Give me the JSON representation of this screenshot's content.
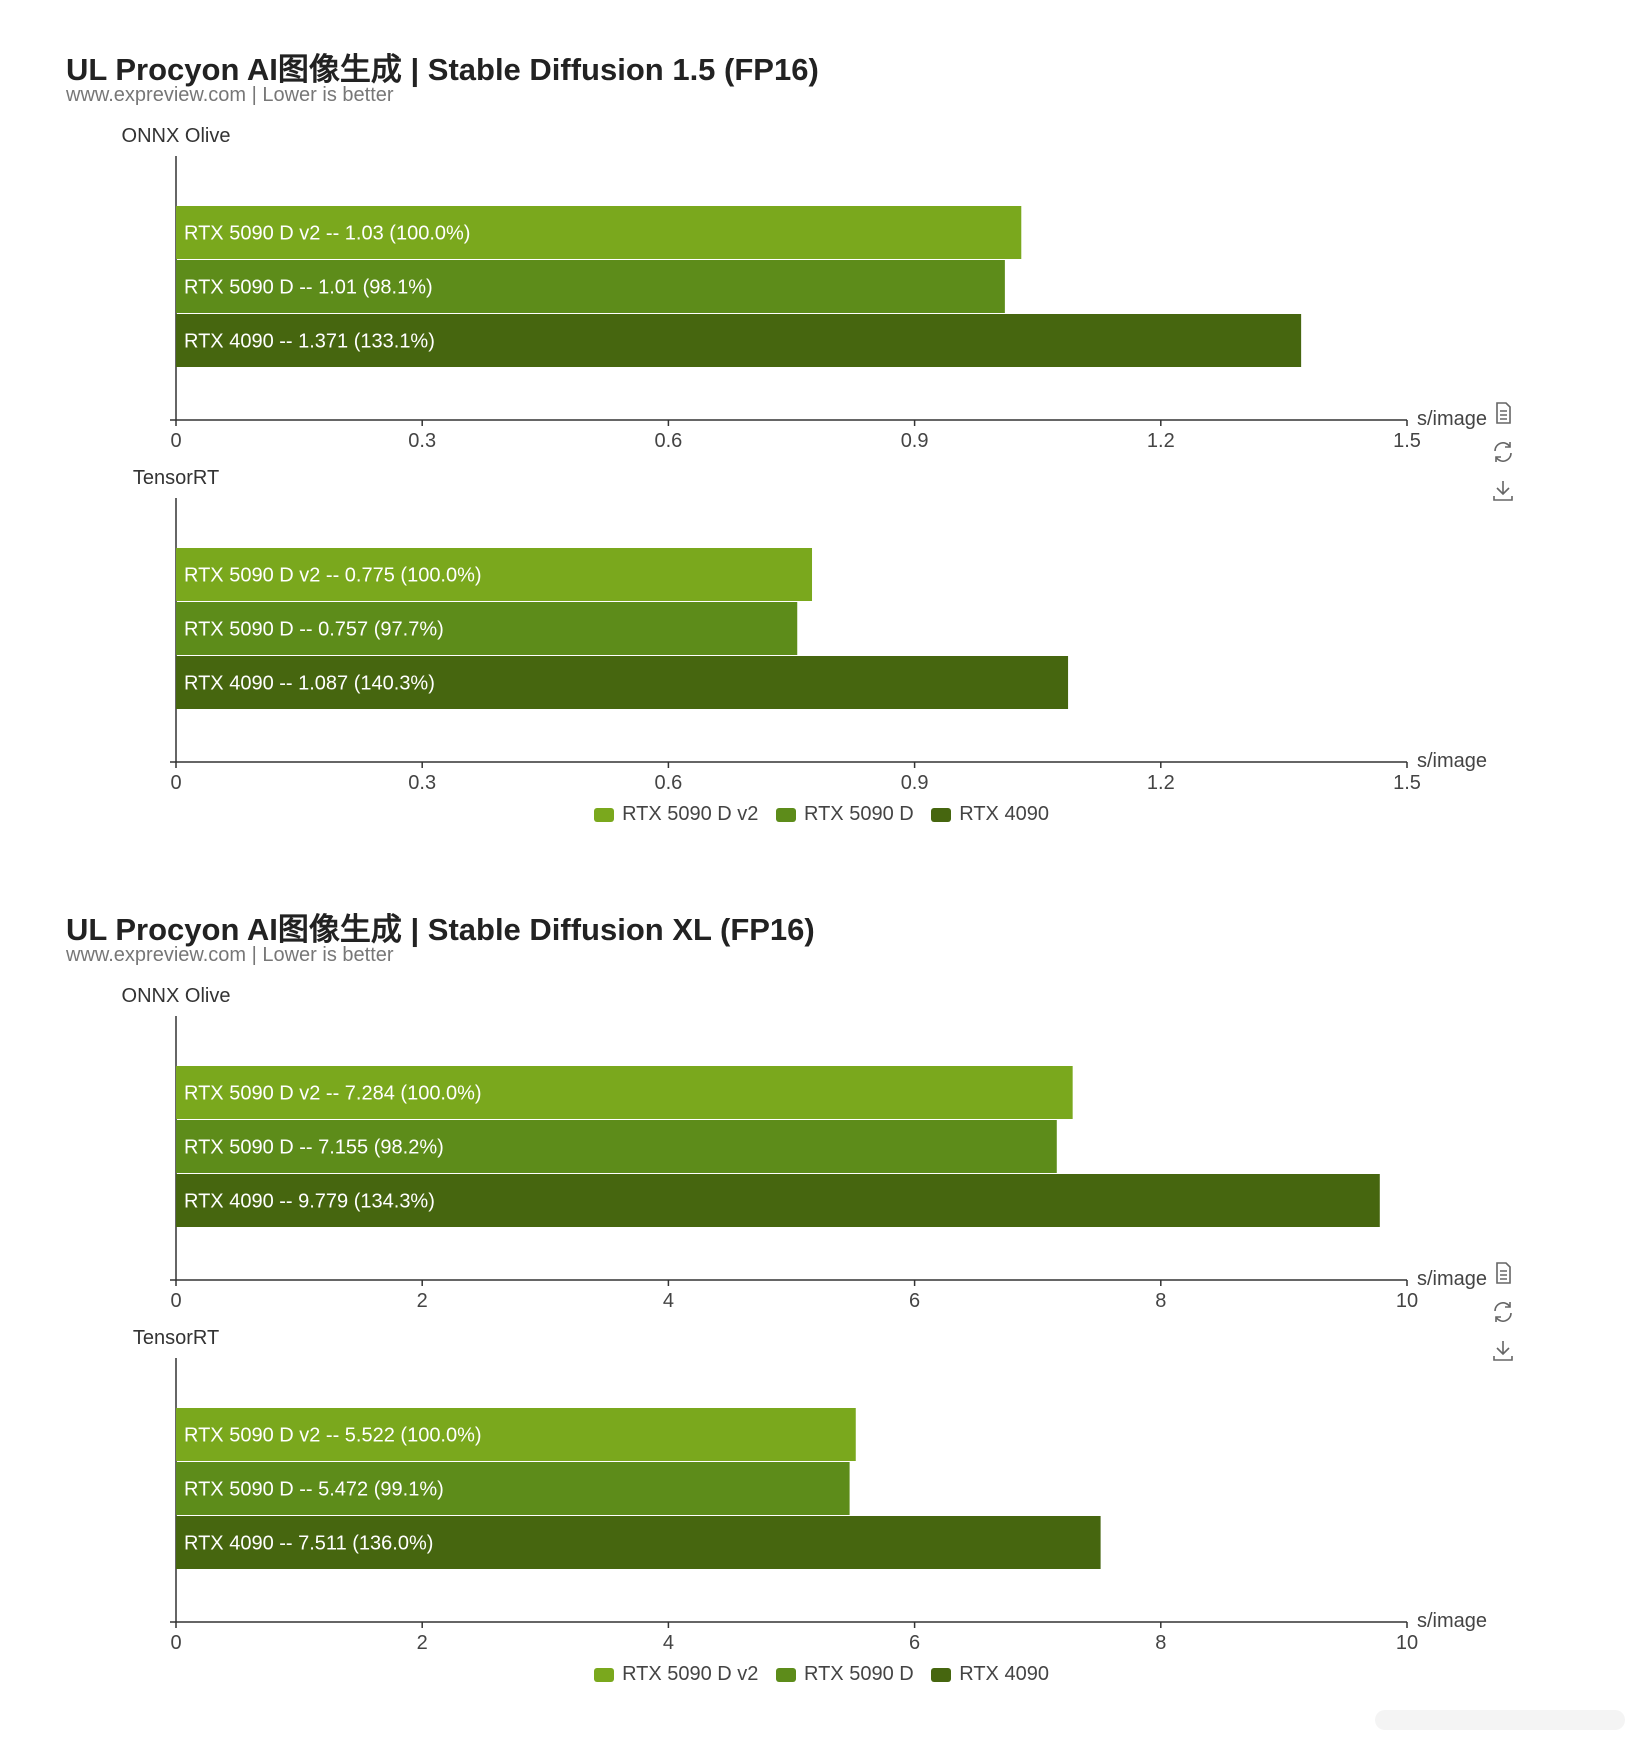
{
  "colors": {
    "v2": "#7aa81d",
    "d": "#5d8c1a",
    "r4090": "#46660f"
  },
  "toolbox": {
    "icons": [
      "data-view-icon",
      "restore-icon",
      "download-icon"
    ]
  },
  "charts": [
    {
      "title": "UL Procyon AI图像生成 | Stable Diffusion 1.5 (FP16)",
      "subtitle": "www.expreview.com | Lower is better",
      "legend": [
        "RTX 5090 D v2",
        "RTX 5090 D",
        "RTX 4090"
      ],
      "panels": [
        {
          "group": "ONNX Olive",
          "unit": "s/image",
          "ticks": [
            "0",
            "0.3",
            "0.6",
            "0.9",
            "1.2",
            "1.5"
          ],
          "bars": [
            {
              "label": "RTX 5090 D v2  --  1.03 (100.0%)"
            },
            {
              "label": "RTX 5090 D  --  1.01 (98.1%)"
            },
            {
              "label": "RTX 4090  --  1.371 (133.1%)"
            }
          ]
        },
        {
          "group": "TensorRT",
          "unit": "s/image",
          "ticks": [
            "0",
            "0.3",
            "0.6",
            "0.9",
            "1.2",
            "1.5"
          ],
          "bars": [
            {
              "label": "RTX 5090 D v2  --  0.775 (100.0%)"
            },
            {
              "label": "RTX 5090 D  --  0.757 (97.7%)"
            },
            {
              "label": "RTX 4090  --  1.087 (140.3%)"
            }
          ]
        }
      ]
    },
    {
      "title": "UL Procyon AI图像生成 | Stable Diffusion XL (FP16)",
      "subtitle": "www.expreview.com | Lower is better",
      "legend": [
        "RTX 5090 D v2",
        "RTX 5090 D",
        "RTX 4090"
      ],
      "panels": [
        {
          "group": "ONNX Olive",
          "unit": "s/image",
          "ticks": [
            "0",
            "2",
            "4",
            "6",
            "8",
            "10"
          ],
          "bars": [
            {
              "label": "RTX 5090 D v2  --  7.284 (100.0%)"
            },
            {
              "label": "RTX 5090 D  --  7.155 (98.2%)"
            },
            {
              "label": "RTX 4090  --  9.779 (134.3%)"
            }
          ]
        },
        {
          "group": "TensorRT",
          "unit": "s/image",
          "ticks": [
            "0",
            "2",
            "4",
            "6",
            "8",
            "10"
          ],
          "bars": [
            {
              "label": "RTX 5090 D v2  --  5.522 (100.0%)"
            },
            {
              "label": "RTX 5090 D  --  5.472 (99.1%)"
            },
            {
              "label": "RTX 4090  --  7.511 (136.0%)"
            }
          ]
        }
      ]
    }
  ],
  "chart_data": [
    {
      "type": "bar",
      "orientation": "horizontal",
      "title": "UL Procyon AI图像生成 | Stable Diffusion 1.5 (FP16)",
      "subtitle": "www.expreview.com | Lower is better",
      "xlabel": "s/image",
      "xlim": [
        0,
        1.5
      ],
      "legend_position": "bottom",
      "series_names": [
        "RTX 5090 D v2",
        "RTX 5090 D",
        "RTX 4090"
      ],
      "panels": [
        {
          "group": "ONNX Olive",
          "values": [
            1.03,
            1.01,
            1.371
          ],
          "percent": [
            100.0,
            98.1,
            133.1
          ]
        },
        {
          "group": "TensorRT",
          "values": [
            0.775,
            0.757,
            1.087
          ],
          "percent": [
            100.0,
            97.7,
            140.3
          ]
        }
      ]
    },
    {
      "type": "bar",
      "orientation": "horizontal",
      "title": "UL Procyon AI图像生成 | Stable Diffusion XL (FP16)",
      "subtitle": "www.expreview.com | Lower is better",
      "xlabel": "s/image",
      "xlim": [
        0,
        10
      ],
      "legend_position": "bottom",
      "series_names": [
        "RTX 5090 D v2",
        "RTX 5090 D",
        "RTX 4090"
      ],
      "panels": [
        {
          "group": "ONNX Olive",
          "values": [
            7.284,
            7.155,
            9.779
          ],
          "percent": [
            100.0,
            98.2,
            134.3
          ]
        },
        {
          "group": "TensorRT",
          "values": [
            5.522,
            5.472,
            7.511
          ],
          "percent": [
            100.0,
            99.1,
            136.0
          ]
        }
      ]
    }
  ]
}
